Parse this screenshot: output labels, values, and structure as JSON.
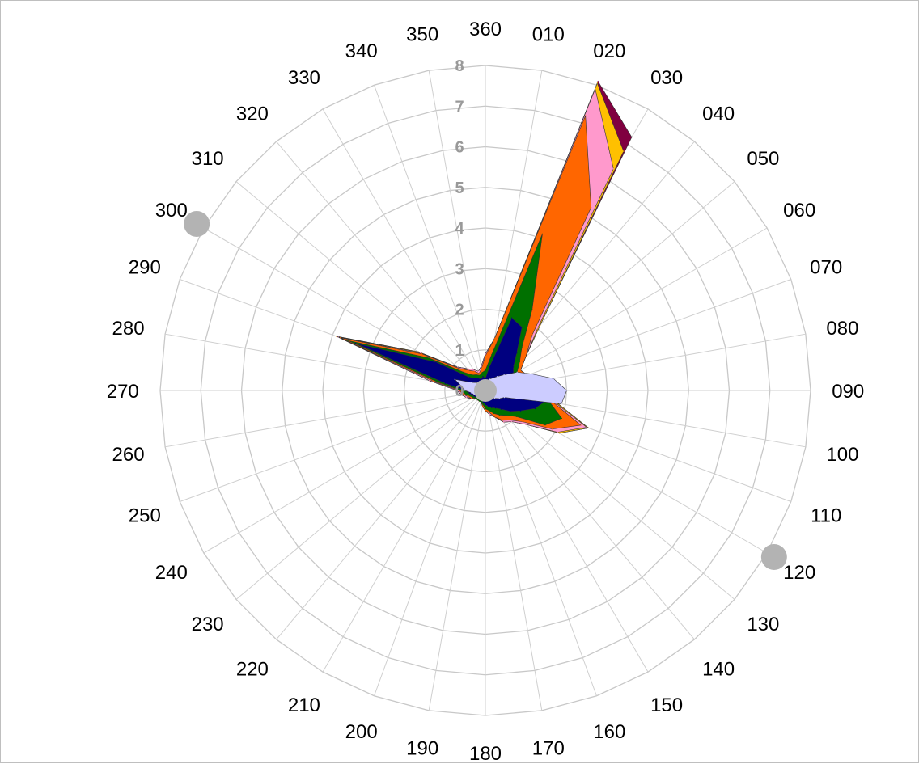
{
  "chart_data": {
    "type": "area",
    "subtype": "radar",
    "title": "",
    "ylim": [
      0,
      8
    ],
    "grid": true,
    "legend": "none",
    "rings": [
      "0",
      "1",
      "2",
      "3",
      "4",
      "5",
      "6",
      "7",
      "8"
    ],
    "directions": [
      "360",
      "010",
      "020",
      "030",
      "040",
      "050",
      "060",
      "070",
      "080",
      "090",
      "100",
      "110",
      "120",
      "130",
      "140",
      "150",
      "160",
      "170",
      "180",
      "190",
      "200",
      "210",
      "220",
      "230",
      "240",
      "250",
      "260",
      "270",
      "280",
      "290",
      "300",
      "310",
      "320",
      "330",
      "340",
      "350"
    ],
    "markers": [
      {
        "direction": 300,
        "value": 8.2,
        "color": "#b3b3b3"
      },
      {
        "direction": 120,
        "value": 8.2,
        "color": "#b3b3b3"
      }
    ],
    "series": [
      {
        "color": "#800040",
        "values": [
          0.9,
          1.3,
          8.1,
          7.2,
          2.1,
          1.3,
          1.0,
          1.1,
          1.1,
          1.6,
          1.8,
          2.7,
          2.1,
          1.3,
          1.0,
          0.9,
          0.7,
          0.6,
          0.5,
          0.4,
          0.3,
          0.3,
          0.3,
          0.3,
          0.4,
          0.5,
          0.6,
          0.7,
          1.4,
          3.9,
          1.9,
          0.9,
          0.7,
          0.6,
          0.5,
          0.6
        ]
      },
      {
        "color": "#ffc000",
        "values": [
          0.9,
          1.3,
          8.05,
          6.8,
          2.1,
          1.3,
          1.0,
          1.1,
          1.1,
          1.6,
          1.8,
          2.7,
          2.1,
          1.3,
          1.0,
          0.9,
          0.7,
          0.6,
          0.5,
          0.4,
          0.3,
          0.3,
          0.3,
          0.3,
          0.4,
          0.5,
          0.6,
          0.7,
          1.4,
          3.9,
          1.9,
          0.9,
          0.7,
          0.6,
          0.5,
          0.6
        ]
      },
      {
        "color": "#ff99cc",
        "values": [
          0.9,
          1.3,
          7.9,
          6.3,
          2.0,
          1.3,
          1.0,
          1.1,
          1.1,
          1.6,
          1.75,
          2.65,
          2.05,
          1.3,
          1.0,
          0.9,
          0.7,
          0.6,
          0.5,
          0.4,
          0.3,
          0.3,
          0.3,
          0.3,
          0.4,
          0.5,
          0.6,
          0.7,
          1.4,
          3.85,
          1.85,
          0.9,
          0.7,
          0.6,
          0.5,
          0.6
        ]
      },
      {
        "color": "#ff6600",
        "values": [
          0.85,
          1.3,
          7.2,
          5.2,
          1.8,
          1.3,
          1.0,
          1.1,
          1.1,
          1.55,
          1.7,
          2.5,
          1.9,
          1.2,
          0.95,
          0.85,
          0.7,
          0.55,
          0.5,
          0.4,
          0.3,
          0.3,
          0.3,
          0.3,
          0.4,
          0.45,
          0.55,
          0.65,
          1.3,
          3.8,
          1.8,
          0.85,
          0.65,
          0.55,
          0.45,
          0.55
        ]
      },
      {
        "color": "#007000",
        "values": [
          0.5,
          0.9,
          4.1,
          2.3,
          1.4,
          1.1,
          0.9,
          1.0,
          1.0,
          1.5,
          1.6,
          2.0,
          1.7,
          1.0,
          0.8,
          0.7,
          0.6,
          0.5,
          0.45,
          0.35,
          0.3,
          0.3,
          0.3,
          0.3,
          0.35,
          0.4,
          0.5,
          0.6,
          1.2,
          3.6,
          1.6,
          0.7,
          0.5,
          0.45,
          0.4,
          0.45
        ]
      },
      {
        "color": "#000080",
        "values": [
          0.3,
          0.6,
          1.9,
          1.8,
          1.2,
          0.9,
          0.8,
          1.0,
          1.0,
          1.45,
          1.5,
          1.3,
          1.0,
          0.8,
          0.6,
          0.5,
          0.45,
          0.4,
          0.35,
          0.3,
          0.25,
          0.25,
          0.25,
          0.25,
          0.3,
          0.35,
          0.4,
          0.5,
          1.0,
          3.4,
          1.4,
          0.5,
          0.4,
          0.35,
          0.3,
          0.35
        ]
      },
      {
        "color": "#ccccff",
        "values": [
          0.2,
          0.25,
          0.3,
          0.35,
          0.45,
          0.6,
          0.9,
          1.2,
          1.7,
          2.0,
          1.9,
          0.5,
          0.4,
          0.3,
          0.25,
          0.2,
          0.2,
          0.2,
          0.2,
          0.2,
          0.2,
          0.2,
          0.2,
          0.2,
          0.25,
          0.3,
          0.35,
          0.5,
          0.6,
          0.8,
          0.4,
          0.3,
          0.25,
          0.2,
          0.2,
          0.2
        ]
      }
    ]
  }
}
